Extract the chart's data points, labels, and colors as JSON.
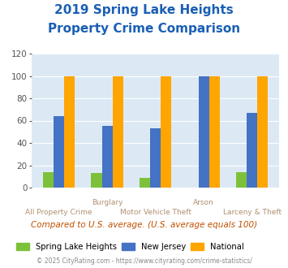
{
  "title_line1": "2019 Spring Lake Heights",
  "title_line2": "Property Crime Comparison",
  "title_color": "#1a5fb4",
  "groups": [
    "All Property Crime",
    "Burglary",
    "Motor Vehicle Theft",
    "Arson",
    "Larceny & Theft"
  ],
  "spring_lake_heights": [
    14,
    13,
    9,
    0,
    14
  ],
  "new_jersey": [
    64,
    55,
    53,
    100,
    67
  ],
  "national": [
    100,
    100,
    100,
    100,
    100
  ],
  "color_slh": "#7dc13a",
  "color_nj": "#4472c4",
  "color_national": "#ffa500",
  "ylim": [
    0,
    120
  ],
  "yticks": [
    0,
    20,
    40,
    60,
    80,
    100,
    120
  ],
  "bg_color": "#dce9f5",
  "legend_labels": [
    "Spring Lake Heights",
    "New Jersey",
    "National"
  ],
  "note_text": "Compared to U.S. average. (U.S. average equals 100)",
  "note_color": "#c05000",
  "footer_text": "© 2025 CityRating.com - https://www.cityrating.com/crime-statistics/",
  "footer_color": "#888888",
  "bar_width": 0.22,
  "category_color": "#b09070"
}
